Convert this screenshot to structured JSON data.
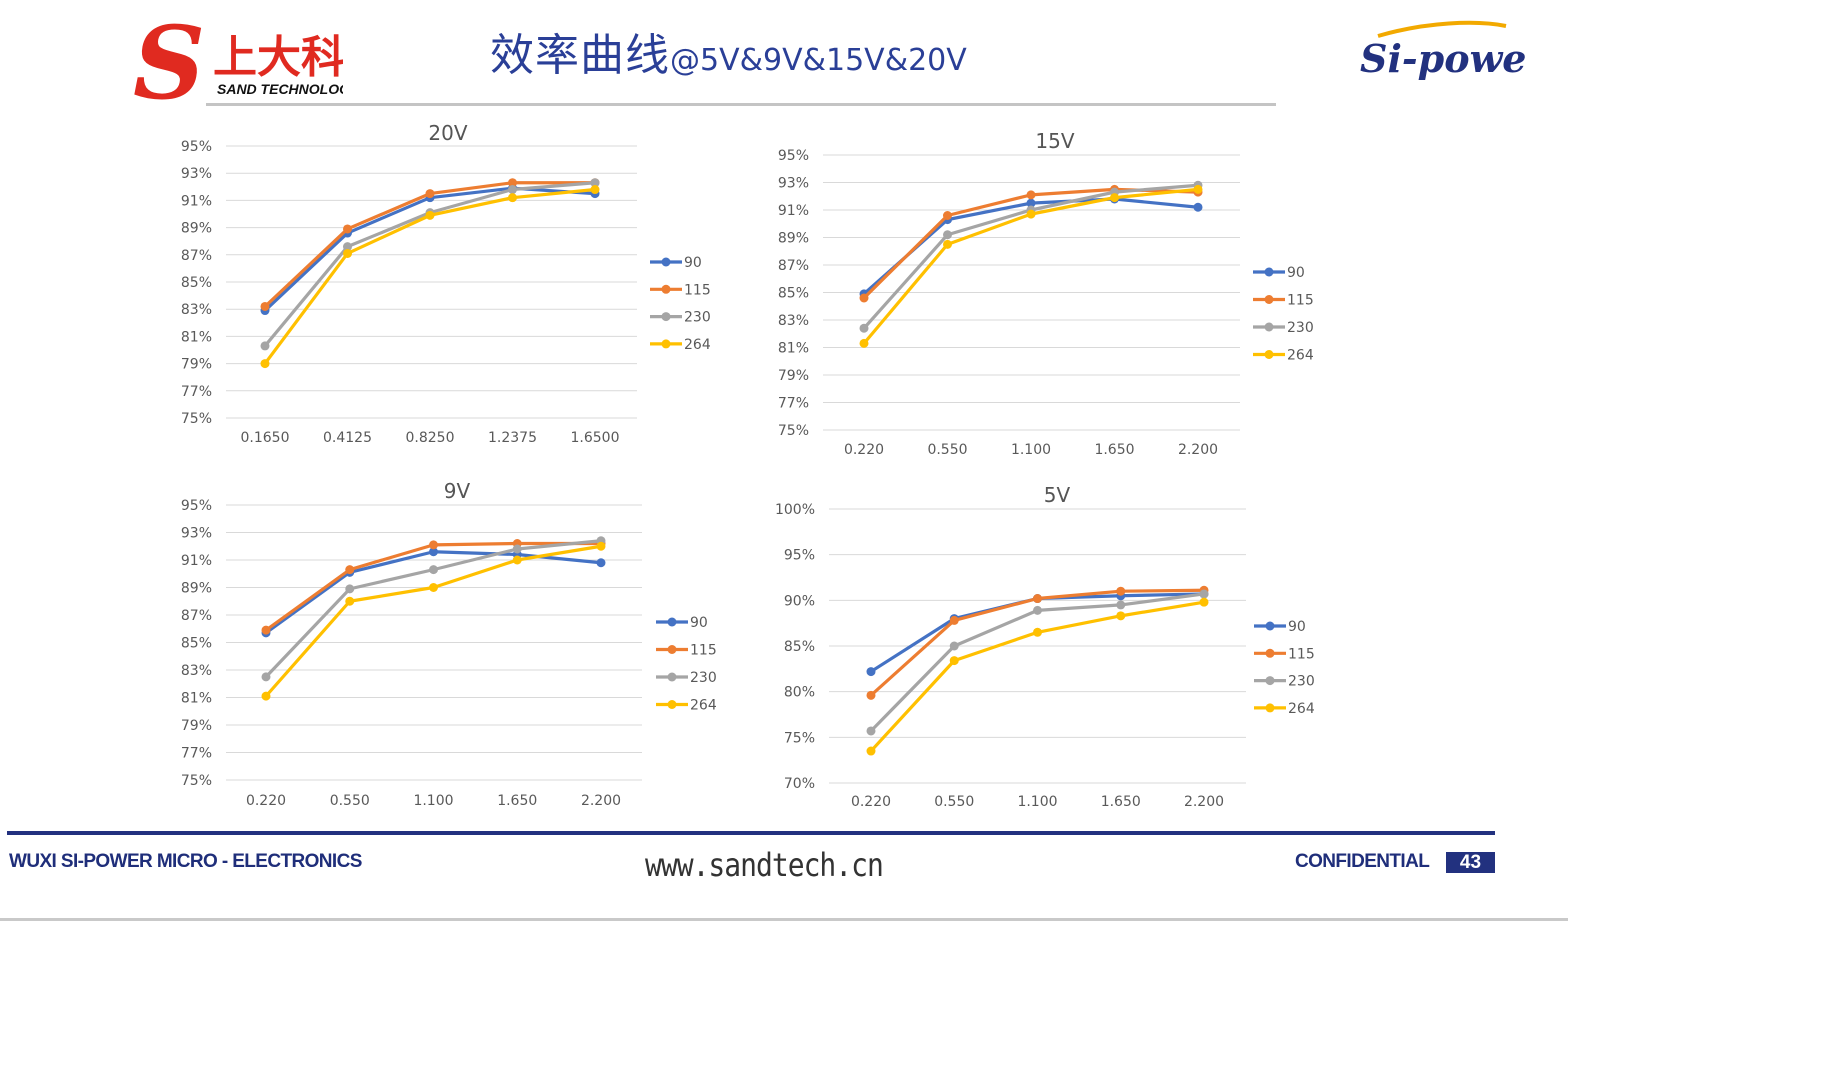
{
  "header": {
    "title_zh": "效率曲线",
    "title_en": "@5V&9V&15V&20V",
    "logo_left": {
      "mark": "S",
      "name_zh": "上大科技",
      "name_en": "SAND TECHNOLOGY"
    },
    "logo_right": {
      "name": "Si-power"
    }
  },
  "colors": {
    "title": "#2a3f97",
    "footer": "#1f2e7a",
    "series": {
      "90": "#4472c4",
      "115": "#ed7d31",
      "230": "#a5a5a5",
      "264": "#ffc000"
    },
    "logo_red": "#e02a20"
  },
  "chart_data": [
    {
      "type": "line",
      "title": "20V",
      "categories": [
        "0.1650",
        "0.4125",
        "0.8250",
        "1.2375",
        "1.6500"
      ],
      "yticks": [
        "95%",
        "93%",
        "91%",
        "89%",
        "87%",
        "85%",
        "83%",
        "81%",
        "79%",
        "77%",
        "75%"
      ],
      "ylim": [
        75,
        95
      ],
      "legend": "right",
      "grid": true,
      "series": [
        {
          "name": "90",
          "values": [
            82.9,
            88.6,
            91.2,
            91.9,
            91.5
          ]
        },
        {
          "name": "115",
          "values": [
            83.2,
            88.9,
            91.5,
            92.3,
            92.3
          ]
        },
        {
          "name": "230",
          "values": [
            80.3,
            87.6,
            90.1,
            91.8,
            92.3
          ]
        },
        {
          "name": "264",
          "values": [
            79.0,
            87.1,
            89.9,
            91.2,
            91.8
          ]
        }
      ]
    },
    {
      "type": "line",
      "title": "15V",
      "categories": [
        "0.220",
        "0.550",
        "1.100",
        "1.650",
        "2.200"
      ],
      "yticks": [
        "95%",
        "93%",
        "91%",
        "89%",
        "87%",
        "85%",
        "83%",
        "81%",
        "79%",
        "77%",
        "75%"
      ],
      "ylim": [
        75,
        95
      ],
      "legend": "right",
      "grid": true,
      "series": [
        {
          "name": "90",
          "values": [
            84.9,
            90.3,
            91.5,
            91.8,
            91.2
          ]
        },
        {
          "name": "115",
          "values": [
            84.6,
            90.6,
            92.1,
            92.5,
            92.3
          ]
        },
        {
          "name": "230",
          "values": [
            82.4,
            89.2,
            91.0,
            92.3,
            92.8
          ]
        },
        {
          "name": "264",
          "values": [
            81.3,
            88.5,
            90.7,
            91.9,
            92.5
          ]
        }
      ]
    },
    {
      "type": "line",
      "title": "9V",
      "categories": [
        "0.220",
        "0.550",
        "1.100",
        "1.650",
        "2.200"
      ],
      "yticks": [
        "95%",
        "93%",
        "91%",
        "89%",
        "87%",
        "85%",
        "83%",
        "81%",
        "79%",
        "77%",
        "75%"
      ],
      "ylim": [
        75,
        95
      ],
      "legend": "right",
      "grid": true,
      "series": [
        {
          "name": "90",
          "values": [
            85.7,
            90.1,
            91.6,
            91.4,
            90.8
          ]
        },
        {
          "name": "115",
          "values": [
            85.9,
            90.3,
            92.1,
            92.2,
            92.2
          ]
        },
        {
          "name": "230",
          "values": [
            82.5,
            88.9,
            90.3,
            91.8,
            92.4
          ]
        },
        {
          "name": "264",
          "values": [
            81.1,
            88.0,
            89.0,
            91.0,
            92.0
          ]
        }
      ]
    },
    {
      "type": "line",
      "title": "5V",
      "categories": [
        "0.220",
        "0.550",
        "1.100",
        "1.650",
        "2.200"
      ],
      "yticks": [
        "100%",
        "95%",
        "90%",
        "85%",
        "80%",
        "75%",
        "70%"
      ],
      "ylim": [
        70,
        100
      ],
      "legend": "right",
      "grid": true,
      "series": [
        {
          "name": "90",
          "values": [
            82.2,
            88.0,
            90.2,
            90.5,
            90.7
          ]
        },
        {
          "name": "115",
          "values": [
            79.6,
            87.8,
            90.2,
            91.0,
            91.1
          ]
        },
        {
          "name": "230",
          "values": [
            75.7,
            85.0,
            88.9,
            89.5,
            90.7
          ]
        },
        {
          "name": "264",
          "values": [
            73.5,
            83.4,
            86.5,
            88.3,
            89.8
          ]
        }
      ]
    }
  ],
  "footer": {
    "company": "WUXI SI-POWER MICRO - ELECTRONICS",
    "website": "www.sandtech.cn",
    "confidential": "CONFIDENTIAL",
    "page_number": "43"
  }
}
